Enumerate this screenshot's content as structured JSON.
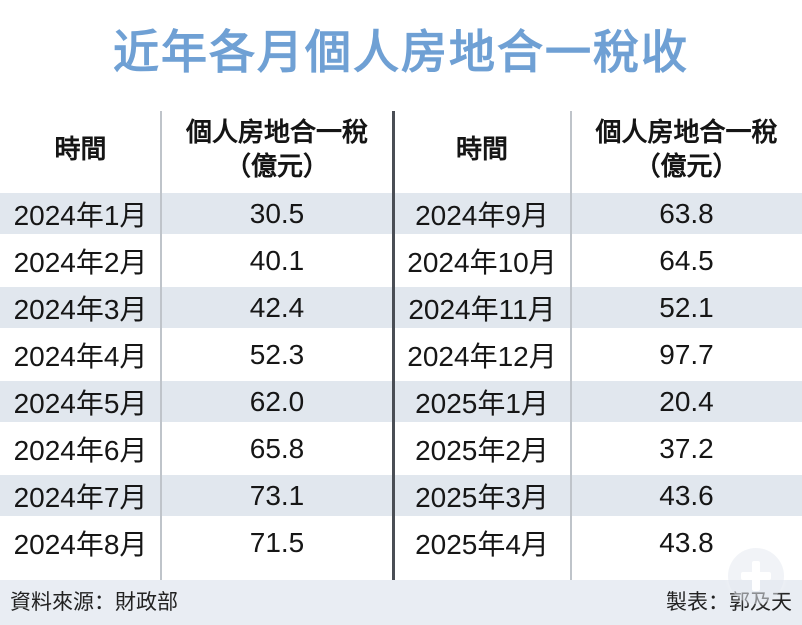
{
  "title": "近年各月個人房地合一稅收",
  "table": {
    "col_headers": {
      "time": "時間",
      "tax_line1": "個人房地合一稅",
      "tax_line2": "（億元）"
    },
    "left_rows": [
      {
        "time": "2024年1月",
        "value": "30.5"
      },
      {
        "time": "2024年2月",
        "value": "40.1"
      },
      {
        "time": "2024年3月",
        "value": "42.4"
      },
      {
        "time": "2024年4月",
        "value": "52.3"
      },
      {
        "time": "2024年5月",
        "value": "62.0"
      },
      {
        "time": "2024年6月",
        "value": "65.8"
      },
      {
        "time": "2024年7月",
        "value": "73.1"
      },
      {
        "time": "2024年8月",
        "value": "71.5"
      }
    ],
    "right_rows": [
      {
        "time": "2024年9月",
        "value": "63.8"
      },
      {
        "time": "2024年10月",
        "value": "64.5"
      },
      {
        "time": "2024年11月",
        "value": "52.1"
      },
      {
        "time": "2024年12月",
        "value": "97.7"
      },
      {
        "time": "2025年1月",
        "value": "20.4"
      },
      {
        "time": "2025年2月",
        "value": "37.2"
      },
      {
        "time": "2025年3月",
        "value": "43.6"
      },
      {
        "time": "2025年4月",
        "value": "43.8"
      }
    ]
  },
  "footer": {
    "source": "資料來源：財政部",
    "credit": "製表：郭及天"
  },
  "icons": {
    "watermark": "plus-icon"
  },
  "colors": {
    "title_blue": "#6FA0D4",
    "row_shade": "#E1E7EE",
    "footer_bg": "#E9EDF3",
    "divider_dark": "#4A4E55",
    "divider_light": "#BFC4CA"
  },
  "chart_data": {
    "type": "table",
    "title": "近年各月個人房地合一稅收",
    "columns": [
      "時間",
      "個人房地合一稅（億元）"
    ],
    "rows": [
      [
        "2024年1月",
        30.5
      ],
      [
        "2024年2月",
        40.1
      ],
      [
        "2024年3月",
        42.4
      ],
      [
        "2024年4月",
        52.3
      ],
      [
        "2024年5月",
        62.0
      ],
      [
        "2024年6月",
        65.8
      ],
      [
        "2024年7月",
        73.1
      ],
      [
        "2024年8月",
        71.5
      ],
      [
        "2024年9月",
        63.8
      ],
      [
        "2024年10月",
        64.5
      ],
      [
        "2024年11月",
        52.1
      ],
      [
        "2024年12月",
        97.7
      ],
      [
        "2025年1月",
        20.4
      ],
      [
        "2025年2月",
        37.2
      ],
      [
        "2025年3月",
        43.6
      ],
      [
        "2025年4月",
        43.8
      ]
    ],
    "source": "資料來源：財政部",
    "credit": "製表：郭及天",
    "layout": "two-column split table, 8 rows per half, alternating shaded rows"
  }
}
